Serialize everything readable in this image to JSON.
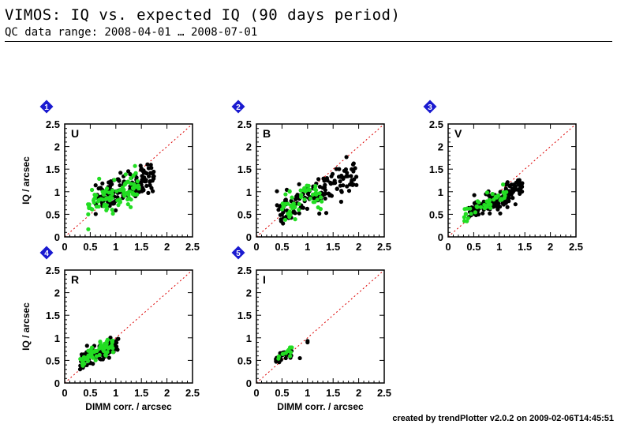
{
  "header": {
    "title": "VIMOS: IQ vs. expected IQ (90 days period)",
    "subtitle": "QC data range: 2008-04-01 … 2008-07-01"
  },
  "footer": {
    "credit": "created by trendPlotter v2.0.2 on 2009-02-06T14:45:51"
  },
  "colors": {
    "series_a": "#000000",
    "series_b": "#22dd22",
    "diagonal": "#dd0000",
    "badge": "#1a1ad0"
  },
  "chart_data": [
    {
      "type": "scatter",
      "panel_number": "1",
      "filter_label": "U",
      "xlabel": "",
      "ylabel": "IQ / arcsec",
      "xlim": [
        0,
        2.5
      ],
      "ylim": [
        0,
        2.5
      ],
      "xticks": [
        "0",
        "0.5",
        "1",
        "1.5",
        "2",
        "2.5"
      ],
      "yticks": [
        "0",
        "0.5",
        "1",
        "1.5",
        "2",
        "2.5"
      ],
      "diagonal": "y = x",
      "series": [
        {
          "color_key": "series_a",
          "cluster": {
            "n": 140,
            "x_range": [
              0.6,
              1.75
            ],
            "slope": 0.55,
            "intercept": 0.45,
            "spread": 0.17
          }
        },
        {
          "color_key": "series_b",
          "cluster": {
            "n": 95,
            "x_range": [
              0.45,
              1.45
            ],
            "slope": 0.35,
            "intercept": 0.6,
            "spread": 0.17
          }
        }
      ]
    },
    {
      "type": "scatter",
      "panel_number": "2",
      "filter_label": "B",
      "xlabel": "",
      "ylabel": "",
      "xlim": [
        0,
        2.5
      ],
      "ylim": [
        0,
        2.5
      ],
      "xticks": [
        "0",
        "0.5",
        "1",
        "1.5",
        "2",
        "2.5"
      ],
      "yticks": [
        "0",
        "0.5",
        "1",
        "1.5",
        "2",
        "2.5"
      ],
      "diagonal": "y = x",
      "series": [
        {
          "color_key": "series_a",
          "cluster": {
            "n": 140,
            "x_range": [
              0.4,
              2.0
            ],
            "slope": 0.55,
            "intercept": 0.3,
            "spread": 0.18
          }
        },
        {
          "color_key": "series_b",
          "cluster": {
            "n": 55,
            "x_range": [
              0.5,
              1.3
            ],
            "slope": 0.5,
            "intercept": 0.35,
            "spread": 0.14
          }
        }
      ]
    },
    {
      "type": "scatter",
      "panel_number": "3",
      "filter_label": "V",
      "xlabel": "",
      "ylabel": "",
      "xlim": [
        0,
        2.5
      ],
      "ylim": [
        0,
        2.5
      ],
      "xticks": [
        "0",
        "0.5",
        "1",
        "1.5",
        "2",
        "2.5"
      ],
      "yticks": [
        "0",
        "0.5",
        "1",
        "1.5",
        "2",
        "2.5"
      ],
      "diagonal": "y = x",
      "series": [
        {
          "color_key": "series_a",
          "cluster": {
            "n": 150,
            "x_range": [
              0.4,
              1.45
            ],
            "slope": 0.6,
            "intercept": 0.25,
            "spread": 0.12
          }
        },
        {
          "color_key": "series_b",
          "cluster": {
            "n": 45,
            "x_range": [
              0.3,
              1.2
            ],
            "slope": 0.6,
            "intercept": 0.3,
            "spread": 0.09
          }
        }
      ]
    },
    {
      "type": "scatter",
      "panel_number": "4",
      "filter_label": "R",
      "xlabel": "DIMM corr. / arcsec",
      "ylabel": "IQ / arcsec",
      "xlim": [
        0,
        2.5
      ],
      "ylim": [
        0,
        2.5
      ],
      "xticks": [
        "0",
        "0.5",
        "1",
        "1.5",
        "2",
        "2.5"
      ],
      "yticks": [
        "0",
        "0.5",
        "1",
        "1.5",
        "2",
        "2.5"
      ],
      "diagonal": "y = x",
      "series": [
        {
          "color_key": "series_a",
          "cluster": {
            "n": 130,
            "x_range": [
              0.3,
              1.05
            ],
            "slope": 0.55,
            "intercept": 0.3,
            "spread": 0.09
          }
        },
        {
          "color_key": "series_b",
          "cluster": {
            "n": 70,
            "x_range": [
              0.3,
              0.95
            ],
            "slope": 0.55,
            "intercept": 0.33,
            "spread": 0.08
          }
        }
      ]
    },
    {
      "type": "scatter",
      "panel_number": "5",
      "filter_label": "I",
      "xlabel": "DIMM corr. / arcsec",
      "ylabel": "",
      "xlim": [
        0,
        2.5
      ],
      "ylim": [
        0,
        2.5
      ],
      "xticks": [
        "0",
        "0.5",
        "1",
        "1.5",
        "2",
        "2.5"
      ],
      "yticks": [
        "0",
        "0.5",
        "1",
        "1.5",
        "2",
        "2.5"
      ],
      "diagonal": "y = x",
      "series": [
        {
          "color_key": "series_a",
          "cluster": {
            "n": 28,
            "x_range": [
              0.35,
              0.7
            ],
            "slope": 0.6,
            "intercept": 0.3,
            "spread": 0.08
          },
          "points": [
            [
              1.0,
              0.9
            ],
            [
              1.0,
              0.93
            ],
            [
              0.85,
              0.55
            ]
          ]
        },
        {
          "color_key": "series_b",
          "cluster": {
            "n": 12,
            "x_range": [
              0.4,
              0.7
            ],
            "slope": 0.6,
            "intercept": 0.32,
            "spread": 0.07
          }
        }
      ]
    }
  ]
}
